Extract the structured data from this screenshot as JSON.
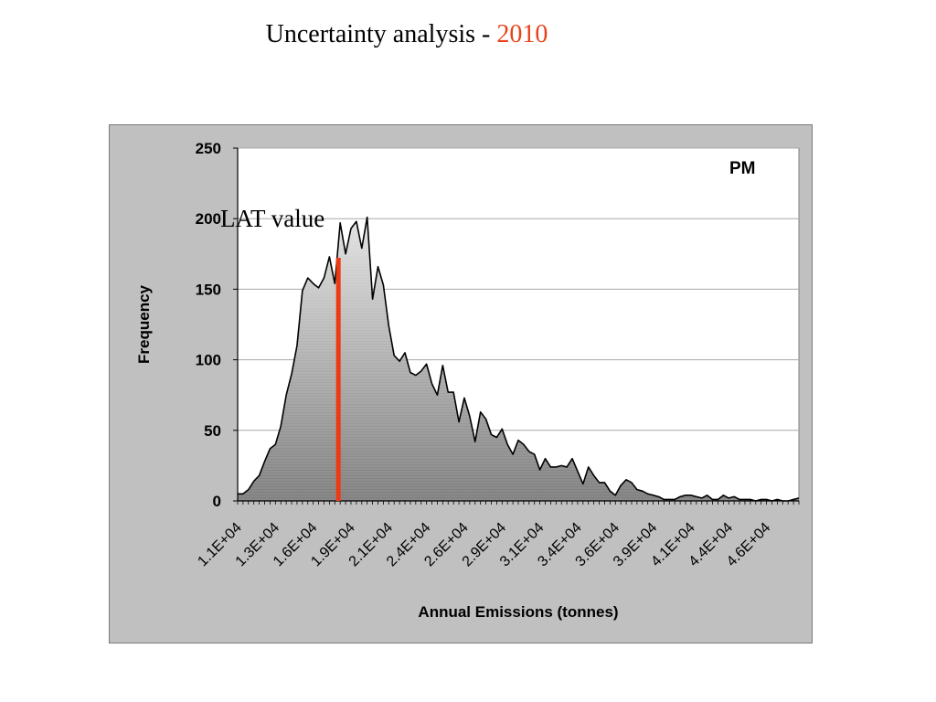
{
  "slide": {
    "title_text": "Uncertainty analysis - ",
    "title_year": "2010"
  },
  "colors": {
    "title_year": "#e8421a",
    "lat_line": "#ee3a14",
    "frame_bg": "#c0c0c0",
    "plot_bg": "#ffffff",
    "area_top": "#e2e2e2",
    "area_bottom": "#7c7c7c"
  },
  "chart_data": {
    "type": "area",
    "series_label": "PM",
    "annotation": {
      "label": "LAT value",
      "x_index": 19
    },
    "xlabel": "Annual Emissions (tonnes)",
    "ylabel": "Frequency",
    "ylim": [
      0,
      250
    ],
    "yticks": [
      0,
      50,
      100,
      150,
      200,
      250
    ],
    "grid": "horizontal",
    "xtick_labels": [
      "1.1E+04",
      "1.3E+04",
      "1.6E+04",
      "1.9E+04",
      "2.1E+04",
      "2.4E+04",
      "2.6E+04",
      "2.9E+04",
      "3.1E+04",
      "3.4E+04",
      "3.6E+04",
      "3.9E+04",
      "4.1E+04",
      "4.4E+04",
      "4.6E+04"
    ],
    "xtick_step": 7,
    "values": [
      5,
      5,
      8,
      14,
      18,
      28,
      37,
      40,
      53,
      75,
      90,
      110,
      149,
      158,
      154,
      151,
      158,
      173,
      154,
      197,
      175,
      193,
      198,
      179,
      201,
      143,
      166,
      153,
      124,
      103,
      99,
      105,
      91,
      89,
      92,
      97,
      83,
      75,
      96,
      77,
      77,
      56,
      73,
      60,
      42,
      63,
      58,
      47,
      45,
      51,
      40,
      33,
      43,
      40,
      35,
      33,
      22,
      30,
      24,
      24,
      25,
      24,
      30,
      21,
      12,
      24,
      18,
      13,
      13,
      7,
      4,
      11,
      15,
      13,
      8,
      7,
      5,
      4,
      3,
      1,
      1,
      1,
      3,
      4,
      4,
      3,
      2,
      4,
      1,
      1,
      4,
      2,
      3,
      1,
      1,
      1,
      0,
      1,
      1,
      0,
      1,
      0,
      0,
      1,
      2
    ]
  }
}
